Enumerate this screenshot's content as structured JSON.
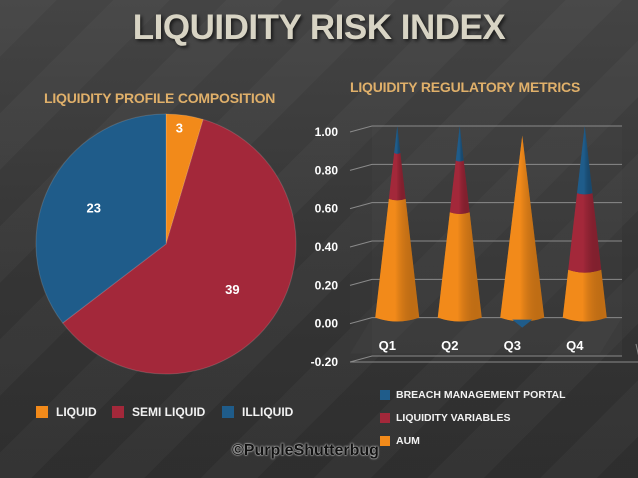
{
  "title": "LIQUIDITY RISK INDEX",
  "copyright": "©PurpleShutterbug",
  "colors": {
    "liquid": "#f28a1a",
    "semi_liquid": "#a3283a",
    "illiquid": "#1f5c8a",
    "breach": "#1f5c8a",
    "variables": "#a3283a",
    "aum": "#f28a1a"
  },
  "chart_data": [
    {
      "type": "pie",
      "title": "LIQUIDITY PROFILE COMPOSITION",
      "categories": [
        "LIQUID",
        "SEMI LIQUID",
        "ILLIQUID"
      ],
      "values": [
        3,
        39,
        23
      ],
      "data_labels": [
        "3",
        "39",
        "23"
      ],
      "legend": "bottom"
    },
    {
      "type": "bar",
      "subtype": "stacked-3d-cone",
      "title": "LIQUIDITY  REGULATORY METRICS",
      "categories": [
        "Q1",
        "Q2",
        "Q3",
        "Q4"
      ],
      "series": [
        {
          "name": "AUM",
          "values": [
            0.62,
            0.55,
            0.95,
            0.25
          ]
        },
        {
          "name": "LIQUIDITY VARIABLES",
          "values": [
            0.24,
            0.27,
            0.0,
            0.4
          ]
        },
        {
          "name": "BREACH MANAGEMENT PORTAL",
          "values": [
            0.14,
            0.18,
            0.0,
            0.35
          ]
        }
      ],
      "ylim": [
        -0.2,
        1.0
      ],
      "yticks": [
        "1.00",
        "0.80",
        "0.60",
        "0.40",
        "0.20",
        "0.00",
        "-0.20"
      ],
      "legend": "bottom"
    }
  ],
  "legends": {
    "pie": [
      "LIQUID",
      "SEMI LIQUID",
      "ILLIQUID"
    ],
    "bar": [
      "BREACH MANAGEMENT PORTAL",
      "LIQUIDITY VARIABLES",
      "AUM"
    ]
  }
}
